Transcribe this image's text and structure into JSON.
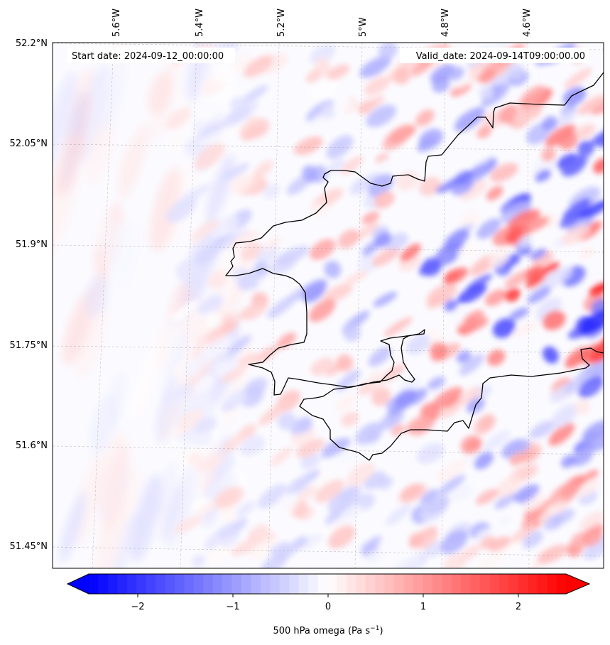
{
  "map": {
    "start_label": "Start date: 2024-09-12_00:00:00",
    "valid_label": "Valid_date: 2024-09-14T09:00:00.00",
    "lon_ticks": [
      "5.6°W",
      "5.4°W",
      "5.2°W",
      "5°W",
      "4.8°W",
      "4.6°W"
    ],
    "lat_ticks": [
      "52.2°N",
      "52.05°N",
      "51.9°N",
      "51.75°N",
      "51.6°N",
      "51.45°N"
    ],
    "extent": {
      "lon_min": -5.75,
      "lon_max": -4.45,
      "lat_min": 51.42,
      "lat_max": 52.2
    },
    "field": "500 hPa omega",
    "colormap": "bwr",
    "coastline_color": "#000000",
    "gridlines": true
  },
  "colorbar": {
    "ticks": [
      "−2",
      "−1",
      "0",
      "1",
      "2"
    ],
    "tick_values": [
      -2,
      -1,
      0,
      1,
      2
    ],
    "vmin": -2.5,
    "vmax": 2.5,
    "extend": "both",
    "label_main": "500 hPa omega (Pa s",
    "label_exp": "−1",
    "label_tail": ")",
    "colors": {
      "min": "#0000ff",
      "mid": "#ffffff",
      "max": "#ff0000"
    }
  }
}
